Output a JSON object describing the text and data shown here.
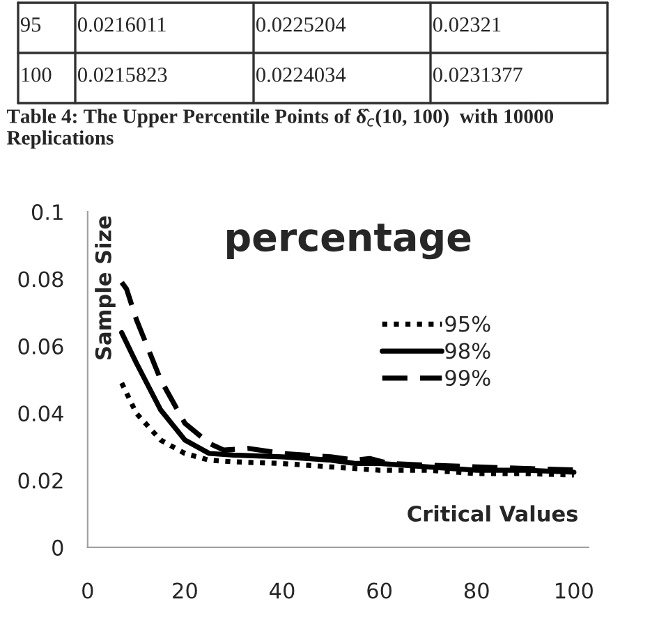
{
  "chart_data": {
    "type": "line",
    "title": "percentage",
    "xlabel": "Critical Values",
    "ylabel": "Sample Size",
    "annotations": [
      "95",
      "0.0216011",
      "0.0225204",
      "0.02321",
      "100",
      "0.0215823",
      "0.0224034",
      "0.0231377",
      "Table 4: The Upper Percentile Points of δ̂$_{c}$(10, 100)  with 10000 Replications"
    ],
    "series": [
      {
        "name": "95%",
        "color": "#000000",
        "line_style": "dotted",
        "x": [
          7,
          10,
          15,
          20,
          25,
          30,
          40,
          50,
          60,
          70,
          80,
          90,
          100
        ],
        "values": [
          0.049,
          0.04,
          0.032,
          0.028,
          0.026,
          0.0255,
          0.025,
          0.024,
          0.023,
          0.023,
          0.022,
          0.022,
          0.0216
        ]
      },
      {
        "name": "98%",
        "color": "#000000",
        "line_style": "solid",
        "x": [
          7,
          10,
          15,
          20,
          25,
          30,
          40,
          50,
          55,
          60,
          70,
          80,
          90,
          100
        ],
        "values": [
          0.064,
          0.055,
          0.041,
          0.032,
          0.028,
          0.0275,
          0.027,
          0.026,
          0.025,
          0.025,
          0.024,
          0.023,
          0.023,
          0.0224
        ]
      },
      {
        "name": "99%",
        "color": "#000000",
        "line_style": "dashed",
        "x": [
          7,
          8,
          10,
          15,
          20,
          25,
          28,
          33,
          40,
          50,
          55,
          58,
          62,
          70,
          80,
          90,
          100
        ],
        "values": [
          0.079,
          0.077,
          0.068,
          0.05,
          0.037,
          0.031,
          0.029,
          0.0295,
          0.028,
          0.027,
          0.026,
          0.0265,
          0.025,
          0.0245,
          0.024,
          0.0235,
          0.0231
        ]
      }
    ],
    "xlim": [
      0,
      103
    ],
    "ylim": [
      0,
      0.1
    ],
    "xticks": [
      0,
      20,
      40,
      60,
      80,
      100
    ],
    "yticks": [
      0,
      0.02,
      0.04,
      0.06,
      0.08,
      0.1
    ],
    "grid": false,
    "legend": "right",
    "marker": "none"
  }
}
